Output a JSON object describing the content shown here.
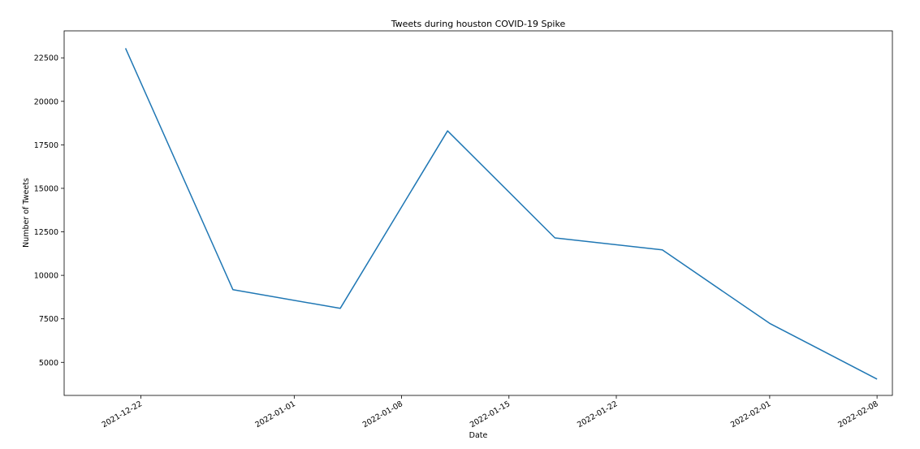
{
  "chart_data": {
    "type": "line",
    "title": "Tweets during houston COVID-19 Spike",
    "xlabel": "Date",
    "ylabel": "Number of Tweets",
    "x_type": "date",
    "x": [
      "2021-12-21",
      "2021-12-28",
      "2022-01-04",
      "2022-01-11",
      "2022-01-18",
      "2022-01-25",
      "2022-02-01",
      "2022-02-08"
    ],
    "series": [
      {
        "values": [
          23050,
          9180,
          8100,
          18300,
          12150,
          11460,
          7240,
          4040
        ]
      }
    ],
    "xlim": [
      "2021-12-17",
      "2022-02-09"
    ],
    "ylim": [
      3100,
      24050
    ],
    "x_ticks": [
      "2021-12-22",
      "2022-01-01",
      "2022-01-08",
      "2022-01-15",
      "2022-01-22",
      "2022-02-01",
      "2022-02-08"
    ],
    "y_ticks": [
      5000,
      7500,
      10000,
      12500,
      15000,
      17500,
      20000,
      22500
    ],
    "grid": false,
    "line_color": "#1f77b4"
  }
}
